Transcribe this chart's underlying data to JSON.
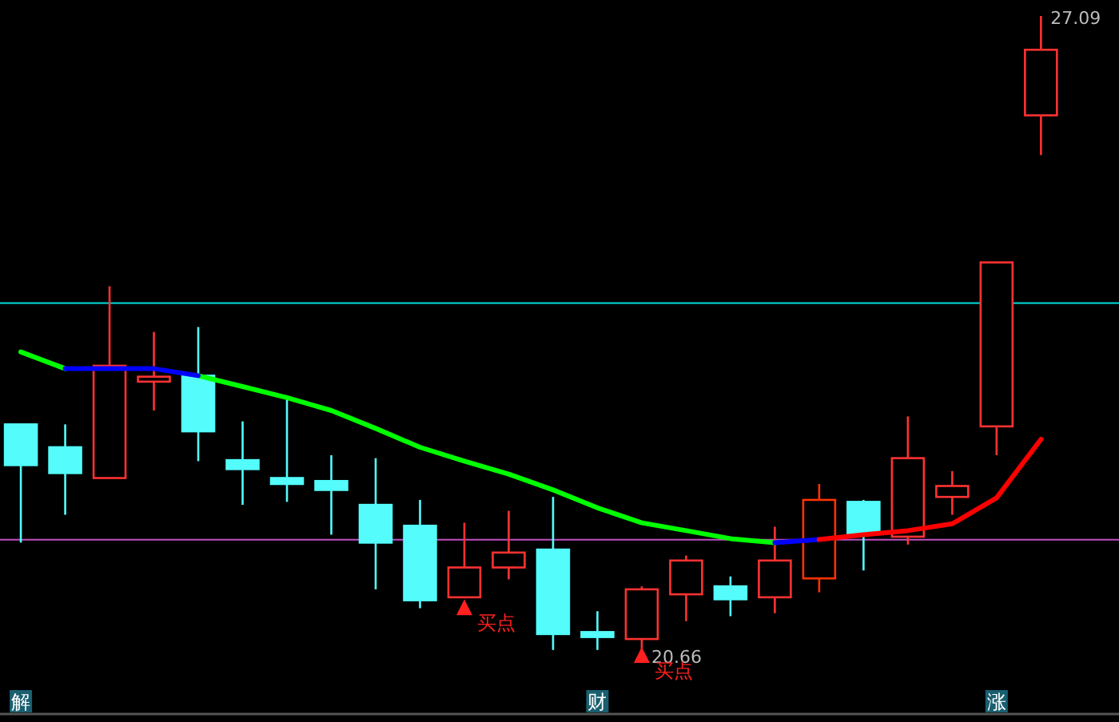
{
  "chart_data": {
    "type": "candlestick",
    "categories": [
      "解",
      null,
      null,
      null,
      null,
      null,
      null,
      null,
      null,
      null,
      null,
      null,
      null,
      "财",
      null,
      null,
      null,
      null,
      null,
      null,
      null,
      null,
      "涨",
      null
    ],
    "ohlc": [
      [
        22.98,
        22.98,
        21.79,
        22.57
      ],
      [
        22.75,
        22.98,
        22.07,
        22.49
      ],
      [
        22.44,
        24.37,
        22.44,
        23.57
      ],
      [
        23.41,
        23.91,
        23.12,
        23.46
      ],
      [
        23.47,
        23.96,
        22.61,
        22.91
      ],
      [
        22.62,
        23.01,
        22.17,
        22.53
      ],
      [
        22.44,
        23.23,
        22.2,
        22.38
      ],
      [
        22.41,
        22.67,
        21.87,
        22.32
      ],
      [
        22.17,
        22.64,
        21.32,
        21.79
      ],
      [
        21.96,
        22.22,
        21.13,
        21.21
      ],
      [
        21.24,
        21.99,
        21.24,
        21.54
      ],
      [
        21.54,
        22.11,
        21.42,
        21.69
      ],
      [
        21.72,
        22.25,
        20.71,
        20.87
      ],
      [
        20.89,
        21.1,
        20.71,
        20.84
      ],
      [
        20.82,
        21.35,
        20.66,
        21.32
      ],
      [
        21.27,
        21.66,
        21.0,
        21.61
      ],
      [
        21.35,
        21.45,
        21.05,
        21.22
      ],
      [
        21.24,
        21.95,
        21.08,
        21.61
      ],
      [
        21.43,
        22.38,
        21.29,
        22.22
      ],
      [
        22.2,
        22.22,
        21.51,
        21.88
      ],
      [
        21.85,
        23.06,
        21.77,
        22.64
      ],
      [
        22.25,
        22.51,
        22.07,
        22.36
      ],
      [
        22.96,
        24.61,
        22.67,
        24.61
      ],
      [
        26.09,
        27.09,
        25.69,
        26.75
      ]
    ],
    "colors": [
      "#54fcfc",
      "#54fcfc",
      "#ff3232",
      "#ff3232",
      "#54fcfc",
      "#54fcfc",
      "#54fcfc",
      "#54fcfc",
      "#54fcfc",
      "#54fcfc",
      "#ff3232",
      "#ff3232",
      "#54fcfc",
      "#54fcfc",
      "#ff3232",
      "#ff3232",
      "#54fcfc",
      "#ff3232",
      "#ff3300",
      "#54fcfc",
      "#ff3232",
      "#ff3232",
      "#ff3232",
      "#ff3232"
    ],
    "value_labels": [
      null,
      null,
      null,
      null,
      null,
      null,
      null,
      null,
      null,
      null,
      null,
      null,
      null,
      null,
      "20.66",
      null,
      null,
      null,
      null,
      null,
      null,
      null,
      null,
      "27.09"
    ],
    "series": [
      {
        "type": "line",
        "color": "#00ff00",
        "values": [
          23.71,
          23.54,
          null,
          null,
          23.47,
          23.36,
          23.25,
          23.12,
          22.94,
          22.75,
          22.61,
          22.48,
          22.32,
          22.14,
          21.99,
          21.91,
          21.83,
          21.79,
          null,
          null,
          null,
          null,
          null,
          null
        ]
      },
      {
        "type": "line",
        "color": "#0000ff",
        "values": [
          null,
          23.54,
          23.54,
          23.54,
          23.47,
          null,
          null,
          null,
          null,
          null,
          null,
          null,
          null,
          null,
          null,
          null,
          null,
          21.79,
          21.82,
          null,
          null,
          null,
          null,
          null
        ]
      },
      {
        "type": "line",
        "color": "#ff0000",
        "values": [
          null,
          null,
          null,
          null,
          null,
          null,
          null,
          null,
          null,
          null,
          null,
          null,
          null,
          null,
          null,
          null,
          null,
          null,
          21.82,
          21.87,
          21.91,
          21.98,
          22.24,
          22.83
        ]
      },
      {
        "type": "scatter",
        "name": "买点",
        "color": "#ff2020",
        "marker": "triangle",
        "values": [
          null,
          null,
          null,
          null,
          null,
          null,
          null,
          null,
          null,
          null,
          21.14,
          null,
          null,
          null,
          20.66,
          null,
          null,
          null,
          null,
          null,
          null,
          null,
          null,
          null
        ]
      }
    ],
    "ref_lines": [
      {
        "axis": "y",
        "value": 24.2,
        "color": "#00e0e0"
      },
      {
        "axis": "y",
        "value": 21.82,
        "color": "#c050c0"
      }
    ],
    "tick_labels": "x"
  }
}
